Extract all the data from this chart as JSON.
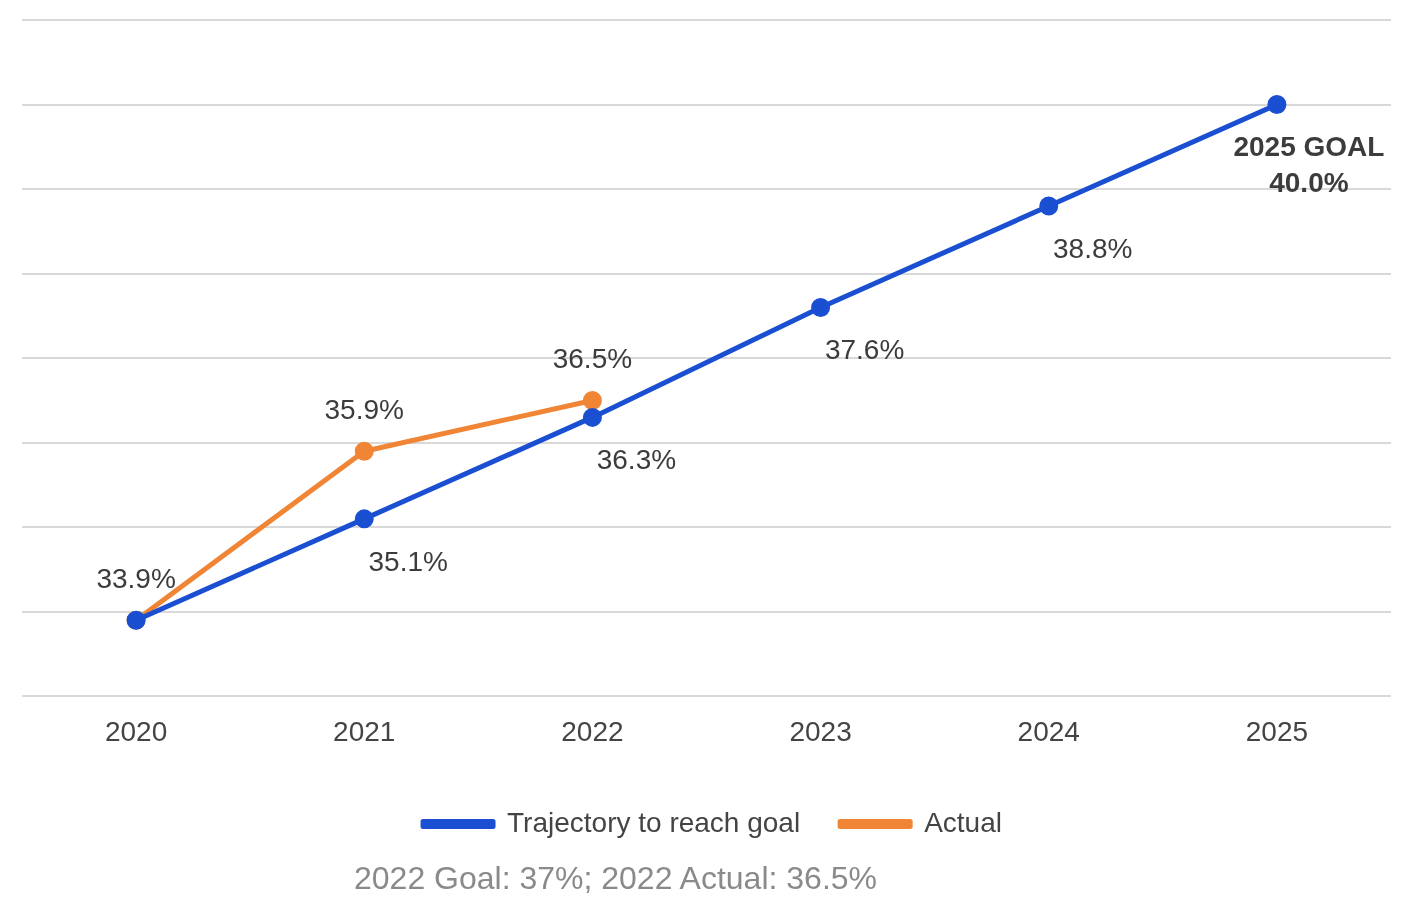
{
  "chart_data": {
    "type": "line",
    "categories": [
      "2020",
      "2021",
      "2022",
      "2023",
      "2024",
      "2025"
    ],
    "series": [
      {
        "name": "Trajectory to reach goal",
        "color": "#1a4fd2",
        "values": [
          33.9,
          35.1,
          36.3,
          37.6,
          38.8,
          40.0
        ],
        "value_labels": [
          null,
          "35.1%",
          "36.3%",
          "37.6%",
          "38.8%",
          null
        ]
      },
      {
        "name": "Actual",
        "color": "#ef8535",
        "values": [
          33.9,
          35.9,
          36.5,
          null,
          null,
          null
        ],
        "value_labels": [
          "33.9%",
          "35.9%",
          "36.5%",
          null,
          null,
          null
        ]
      }
    ],
    "ylim": [
      33,
      41
    ],
    "yticks": [
      {
        "value": 33,
        "label": null
      },
      {
        "value": 34,
        "label": null
      },
      {
        "value": 35,
        "label": null
      },
      {
        "value": 36,
        "label": null
      },
      {
        "value": 37,
        "label": null
      },
      {
        "value": 38,
        "label": null
      },
      {
        "value": 39,
        "label": null
      },
      {
        "value": 40,
        "label": null
      },
      {
        "value": 41,
        "label": null
      }
    ],
    "tick_labels": "x",
    "grid": "y",
    "legend": "bottom",
    "marker": "circle",
    "line_style": "solid",
    "annotations": [
      {
        "text": "2025 GOAL\n40.0%",
        "x": "2025",
        "y": 40
      },
      "2022 Goal: 37%; 2022 Actual: 36.5%"
    ]
  }
}
